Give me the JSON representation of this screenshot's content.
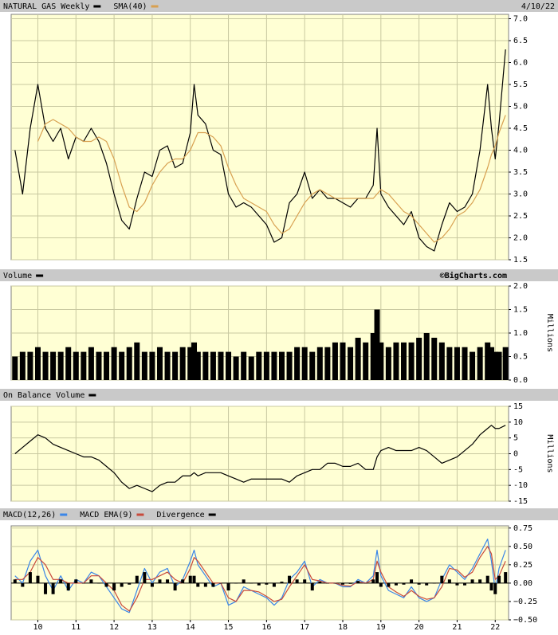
{
  "chart_data": [
    {
      "type": "line",
      "date_label": "4/10/22",
      "x": [
        2009.4,
        2009.6,
        2009.8,
        2010.0,
        2010.2,
        2010.4,
        2010.6,
        2010.8,
        2011.0,
        2011.2,
        2011.4,
        2011.6,
        2011.8,
        2012.0,
        2012.2,
        2012.4,
        2012.6,
        2012.8,
        2013.0,
        2013.2,
        2013.4,
        2013.6,
        2013.8,
        2014.0,
        2014.1,
        2014.2,
        2014.4,
        2014.6,
        2014.8,
        2015.0,
        2015.2,
        2015.4,
        2015.6,
        2015.8,
        2016.0,
        2016.2,
        2016.4,
        2016.6,
        2016.8,
        2017.0,
        2017.2,
        2017.4,
        2017.6,
        2017.8,
        2018.0,
        2018.2,
        2018.4,
        2018.6,
        2018.8,
        2018.9,
        2019.0,
        2019.2,
        2019.4,
        2019.6,
        2019.8,
        2020.0,
        2020.2,
        2020.4,
        2020.6,
        2020.8,
        2021.0,
        2021.2,
        2021.4,
        2021.6,
        2021.8,
        2021.9,
        2022.0,
        2022.1,
        2022.27
      ],
      "xlim": [
        2009.3,
        2022.35
      ],
      "ylim": [
        1.5,
        7.1
      ],
      "yticks": [
        1.5,
        {
          "value": 2,
          "label": "2.0"
        },
        2.5,
        {
          "value": 3,
          "label": "3.0"
        },
        3.5,
        {
          "value": 4,
          "label": "4.0"
        },
        4.5,
        {
          "value": 5,
          "label": "5.0"
        },
        5.5,
        {
          "value": 6,
          "label": "6.0"
        },
        6.5,
        {
          "value": 7,
          "label": "7.0"
        }
      ],
      "grid": true,
      "series": [
        {
          "name": "NATURAL GAS Weekly",
          "color": "#000000",
          "values": [
            4.0,
            3.0,
            4.5,
            5.5,
            4.5,
            4.2,
            4.5,
            3.8,
            4.3,
            4.2,
            4.5,
            4.2,
            3.7,
            3.0,
            2.4,
            2.2,
            2.9,
            3.5,
            3.4,
            4.0,
            4.1,
            3.6,
            3.7,
            4.4,
            5.5,
            4.8,
            4.6,
            4.0,
            3.9,
            3.0,
            2.7,
            2.8,
            2.7,
            2.5,
            2.3,
            1.9,
            2.0,
            2.8,
            3.0,
            3.5,
            2.9,
            3.1,
            2.9,
            2.9,
            2.8,
            2.7,
            2.9,
            2.9,
            3.2,
            4.5,
            3.0,
            2.7,
            2.5,
            2.3,
            2.6,
            2.0,
            1.8,
            1.7,
            2.3,
            2.8,
            2.6,
            2.7,
            3.0,
            4.0,
            5.5,
            4.5,
            3.8,
            4.6,
            6.3
          ]
        },
        {
          "name": "SMA(40)",
          "color": "#d8a050",
          "values": [
            null,
            null,
            null,
            4.2,
            4.6,
            4.7,
            4.6,
            4.5,
            4.3,
            4.2,
            4.2,
            4.3,
            4.2,
            3.8,
            3.2,
            2.7,
            2.6,
            2.8,
            3.2,
            3.5,
            3.7,
            3.8,
            3.8,
            4.0,
            4.2,
            4.4,
            4.4,
            4.3,
            4.1,
            3.6,
            3.2,
            2.9,
            2.8,
            2.7,
            2.6,
            2.3,
            2.1,
            2.2,
            2.5,
            2.8,
            3.0,
            3.1,
            3.0,
            2.9,
            2.9,
            2.9,
            2.9,
            2.9,
            2.9,
            3.0,
            3.1,
            3.0,
            2.8,
            2.6,
            2.5,
            2.3,
            2.1,
            1.9,
            2.0,
            2.2,
            2.5,
            2.6,
            2.8,
            3.1,
            3.6,
            3.9,
            4.1,
            4.4,
            4.8
          ]
        }
      ]
    },
    {
      "type": "bar",
      "source": "©BigCharts.com",
      "y_label": "Millions",
      "x": [
        2009.4,
        2009.6,
        2009.8,
        2010.0,
        2010.2,
        2010.4,
        2010.6,
        2010.8,
        2011.0,
        2011.2,
        2011.4,
        2011.6,
        2011.8,
        2012.0,
        2012.2,
        2012.4,
        2012.6,
        2012.8,
        2013.0,
        2013.2,
        2013.4,
        2013.6,
        2013.8,
        2014.0,
        2014.1,
        2014.2,
        2014.4,
        2014.6,
        2014.8,
        2015.0,
        2015.2,
        2015.4,
        2015.6,
        2015.8,
        2016.0,
        2016.2,
        2016.4,
        2016.6,
        2016.8,
        2017.0,
        2017.2,
        2017.4,
        2017.6,
        2017.8,
        2018.0,
        2018.2,
        2018.4,
        2018.6,
        2018.8,
        2018.9,
        2019.0,
        2019.2,
        2019.4,
        2019.6,
        2019.8,
        2020.0,
        2020.2,
        2020.4,
        2020.6,
        2020.8,
        2021.0,
        2021.2,
        2021.4,
        2021.6,
        2021.8,
        2021.9,
        2022.0,
        2022.1,
        2022.27
      ],
      "xlim": [
        2009.3,
        2022.35
      ],
      "ylim": [
        0,
        2
      ],
      "yticks": [
        {
          "value": 0,
          "label": "0.0"
        },
        0.5,
        {
          "value": 1,
          "label": "1.0"
        },
        1.5,
        {
          "value": 2,
          "label": "2.0"
        }
      ],
      "grid": true,
      "series": [
        {
          "name": "Volume",
          "color": "#000000",
          "values": [
            0.5,
            0.6,
            0.6,
            0.7,
            0.6,
            0.6,
            0.6,
            0.7,
            0.6,
            0.6,
            0.7,
            0.6,
            0.6,
            0.7,
            0.6,
            0.7,
            0.8,
            0.6,
            0.6,
            0.7,
            0.6,
            0.6,
            0.7,
            0.7,
            0.8,
            0.6,
            0.6,
            0.6,
            0.6,
            0.6,
            0.5,
            0.6,
            0.5,
            0.6,
            0.6,
            0.6,
            0.6,
            0.6,
            0.7,
            0.7,
            0.6,
            0.7,
            0.7,
            0.8,
            0.8,
            0.7,
            0.9,
            0.8,
            1.0,
            1.5,
            0.8,
            0.7,
            0.8,
            0.8,
            0.8,
            0.9,
            1.0,
            0.9,
            0.8,
            0.7,
            0.7,
            0.7,
            0.6,
            0.7,
            0.8,
            0.7,
            0.6,
            0.6,
            0.7
          ]
        }
      ]
    },
    {
      "type": "line",
      "y_label": "Millions",
      "x": [
        2009.4,
        2009.6,
        2009.8,
        2010.0,
        2010.2,
        2010.4,
        2010.6,
        2010.8,
        2011.0,
        2011.2,
        2011.4,
        2011.6,
        2011.8,
        2012.0,
        2012.2,
        2012.4,
        2012.6,
        2012.8,
        2013.0,
        2013.2,
        2013.4,
        2013.6,
        2013.8,
        2014.0,
        2014.1,
        2014.2,
        2014.4,
        2014.6,
        2014.8,
        2015.0,
        2015.2,
        2015.4,
        2015.6,
        2015.8,
        2016.0,
        2016.2,
        2016.4,
        2016.6,
        2016.8,
        2017.0,
        2017.2,
        2017.4,
        2017.6,
        2017.8,
        2018.0,
        2018.2,
        2018.4,
        2018.6,
        2018.8,
        2018.9,
        2019.0,
        2019.2,
        2019.4,
        2019.6,
        2019.8,
        2020.0,
        2020.2,
        2020.4,
        2020.6,
        2020.8,
        2021.0,
        2021.2,
        2021.4,
        2021.6,
        2021.8,
        2021.9,
        2022.0,
        2022.1,
        2022.27
      ],
      "xlim": [
        2009.3,
        2022.35
      ],
      "ylim": [
        -15,
        15
      ],
      "yticks": [
        -15,
        -10,
        -5,
        0,
        5,
        10,
        15
      ],
      "grid": true,
      "series": [
        {
          "name": "On Balance Volume",
          "color": "#000000",
          "values": [
            0,
            2,
            4,
            6,
            5,
            3,
            2,
            1,
            0,
            -1,
            -1,
            -2,
            -4,
            -6,
            -9,
            -11,
            -10,
            -11,
            -12,
            -10,
            -9,
            -9,
            -7,
            -7,
            -6,
            -7,
            -6,
            -6,
            -6,
            -7,
            -8,
            -9,
            -8,
            -8,
            -8,
            -8,
            -8,
            -9,
            -7,
            -6,
            -5,
            -5,
            -3,
            -3,
            -4,
            -4,
            -3,
            -5,
            -5,
            -1,
            1,
            2,
            1,
            1,
            1,
            2,
            1,
            -1,
            -3,
            -2,
            -1,
            1,
            3,
            6,
            8,
            9,
            8,
            8,
            9
          ]
        }
      ]
    },
    {
      "type": "line",
      "x": [
        2009.4,
        2009.6,
        2009.8,
        2010.0,
        2010.2,
        2010.4,
        2010.6,
        2010.8,
        2011.0,
        2011.2,
        2011.4,
        2011.6,
        2011.8,
        2012.0,
        2012.2,
        2012.4,
        2012.6,
        2012.8,
        2013.0,
        2013.2,
        2013.4,
        2013.6,
        2013.8,
        2014.0,
        2014.1,
        2014.2,
        2014.4,
        2014.6,
        2014.8,
        2015.0,
        2015.2,
        2015.4,
        2015.6,
        2015.8,
        2016.0,
        2016.2,
        2016.4,
        2016.6,
        2016.8,
        2017.0,
        2017.2,
        2017.4,
        2017.6,
        2017.8,
        2018.0,
        2018.2,
        2018.4,
        2018.6,
        2018.8,
        2018.9,
        2019.0,
        2019.2,
        2019.4,
        2019.6,
        2019.8,
        2020.0,
        2020.2,
        2020.4,
        2020.6,
        2020.8,
        2021.0,
        2021.2,
        2021.4,
        2021.6,
        2021.8,
        2021.9,
        2022.0,
        2022.1,
        2022.27
      ],
      "xlim": [
        2009.3,
        2022.35
      ],
      "ylim": [
        -0.5,
        0.78
      ],
      "yticks": [
        {
          "value": -0.5,
          "label": "−0.50"
        },
        {
          "value": -0.25,
          "label": "−0.25"
        },
        {
          "value": 0,
          "label": "0.00"
        },
        0.25,
        {
          "value": 0.5,
          "label": "0.50"
        },
        0.75
      ],
      "xticks": [
        {
          "value": 2010,
          "label": "10"
        },
        {
          "value": 2011,
          "label": "11"
        },
        {
          "value": 2012,
          "label": "12"
        },
        {
          "value": 2013,
          "label": "13"
        },
        {
          "value": 2014,
          "label": "14"
        },
        {
          "value": 2015,
          "label": "15"
        },
        {
          "value": 2016,
          "label": "16"
        },
        {
          "value": 2017,
          "label": "17"
        },
        {
          "value": 2018,
          "label": "18"
        },
        {
          "value": 2019,
          "label": "19"
        },
        {
          "value": 2020,
          "label": "20"
        },
        {
          "value": 2021,
          "label": "21"
        },
        {
          "value": 2022,
          "label": "22"
        }
      ],
      "grid": true,
      "series": [
        {
          "name": "MACD(12,26)",
          "color": "#3a86e8",
          "type": "line",
          "values": [
            0.1,
            0.0,
            0.3,
            0.45,
            0.1,
            -0.1,
            0.1,
            -0.1,
            0.05,
            0.0,
            0.15,
            0.1,
            -0.05,
            -0.2,
            -0.35,
            -0.4,
            -0.1,
            0.2,
            0.0,
            0.15,
            0.2,
            -0.05,
            0.05,
            0.3,
            0.45,
            0.25,
            0.1,
            -0.05,
            0.0,
            -0.3,
            -0.25,
            -0.05,
            -0.1,
            -0.15,
            -0.2,
            -0.3,
            -0.2,
            0.05,
            0.15,
            0.3,
            -0.05,
            0.05,
            0.0,
            0.0,
            -0.05,
            -0.05,
            0.05,
            0.0,
            0.1,
            0.45,
            0.1,
            -0.1,
            -0.15,
            -0.2,
            -0.05,
            -0.2,
            -0.25,
            -0.2,
            0.05,
            0.25,
            0.15,
            0.05,
            0.2,
            0.4,
            0.6,
            0.3,
            -0.1,
            0.2,
            0.45
          ]
        },
        {
          "name": "MACD EMA(9)",
          "color": "#c84a3c",
          "type": "line",
          "values": [
            0.05,
            0.05,
            0.15,
            0.35,
            0.25,
            0.05,
            0.05,
            0.0,
            0.0,
            0.0,
            0.1,
            0.1,
            0.0,
            -0.1,
            -0.3,
            -0.38,
            -0.2,
            0.05,
            0.05,
            0.1,
            0.15,
            0.05,
            0.0,
            0.2,
            0.35,
            0.3,
            0.15,
            0.0,
            0.0,
            -0.2,
            -0.25,
            -0.1,
            -0.1,
            -0.12,
            -0.18,
            -0.25,
            -0.22,
            -0.05,
            0.1,
            0.25,
            0.05,
            0.03,
            0.0,
            0.0,
            -0.03,
            -0.04,
            0.02,
            0.0,
            0.05,
            0.3,
            0.15,
            -0.05,
            -0.12,
            -0.18,
            -0.1,
            -0.18,
            -0.22,
            -0.2,
            -0.05,
            0.2,
            0.18,
            0.08,
            0.15,
            0.35,
            0.5,
            0.4,
            0.05,
            0.1,
            0.3
          ]
        },
        {
          "name": "Divergence",
          "color": "#000000",
          "type": "bar",
          "values": [
            0.05,
            -0.05,
            0.15,
            0.1,
            -0.15,
            -0.15,
            0.05,
            -0.1,
            0.05,
            0,
            0.05,
            0,
            -0.05,
            -0.1,
            -0.05,
            -0.02,
            0.1,
            0.15,
            -0.05,
            0.05,
            0.05,
            -0.1,
            0.05,
            0.1,
            0.1,
            -0.05,
            -0.05,
            -0.05,
            0,
            -0.1,
            0,
            0.05,
            0,
            -0.03,
            -0.02,
            -0.05,
            0.02,
            0.1,
            0.05,
            0.05,
            -0.1,
            0.02,
            0,
            0,
            -0.02,
            -0.01,
            0.03,
            0,
            0.05,
            0.15,
            -0.05,
            -0.05,
            -0.03,
            -0.02,
            0.05,
            -0.02,
            -0.03,
            0,
            0.1,
            0.05,
            -0.03,
            -0.03,
            0.05,
            0.05,
            0.1,
            -0.1,
            -0.15,
            0.1,
            0.15
          ]
        }
      ]
    }
  ]
}
